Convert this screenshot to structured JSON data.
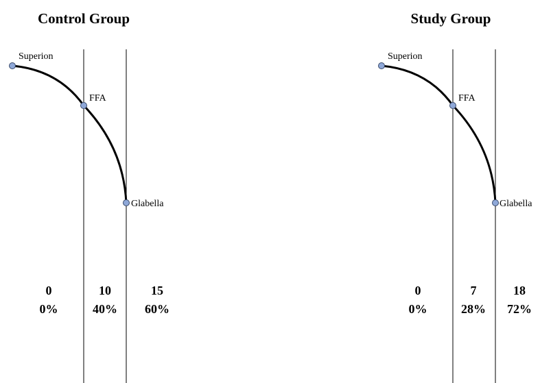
{
  "panels": [
    {
      "title": "Control Group",
      "landmarks": {
        "superion": "Superion",
        "ffa": "FFA",
        "glabella": "Glabella"
      },
      "zones": [
        {
          "count": "0",
          "percent": "0%"
        },
        {
          "count": "10",
          "percent": "40%"
        },
        {
          "count": "15",
          "percent": "60%"
        }
      ]
    },
    {
      "title": "Study Group",
      "landmarks": {
        "superion": "Superion",
        "ffa": "FFA",
        "glabella": "Glabella"
      },
      "zones": [
        {
          "count": "0",
          "percent": "0%"
        },
        {
          "count": "7",
          "percent": "28%"
        },
        {
          "count": "18",
          "percent": "72%"
        }
      ]
    }
  ],
  "colors": {
    "marker_fill": "#8fa8d8",
    "marker_stroke": "#3a4a6a",
    "line": "#000000"
  },
  "icons": {
    "landmark": "circle-marker"
  }
}
